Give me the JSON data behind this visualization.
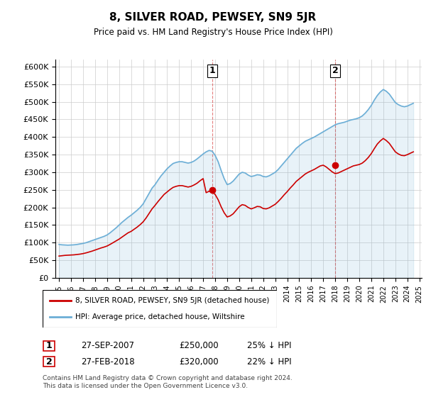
{
  "title": "8, SILVER ROAD, PEWSEY, SN9 5JR",
  "subtitle": "Price paid vs. HM Land Registry's House Price Index (HPI)",
  "ylabel": "",
  "ylim": [
    0,
    620000
  ],
  "yticks": [
    0,
    50000,
    100000,
    150000,
    200000,
    250000,
    300000,
    350000,
    400000,
    450000,
    500000,
    550000,
    600000
  ],
  "hpi_color": "#6baed6",
  "price_color": "#cc0000",
  "sale1": {
    "date": "2007-09-27",
    "price": 250000,
    "label": "1"
  },
  "sale2": {
    "date": "2018-02-27",
    "price": 320000,
    "label": "2"
  },
  "legend_line1": "8, SILVER ROAD, PEWSEY, SN9 5JR (detached house)",
  "legend_line2": "HPI: Average price, detached house, Wiltshire",
  "table_row1": [
    "1",
    "27-SEP-2007",
    "£250,000",
    "25% ↓ HPI"
  ],
  "table_row2": [
    "2",
    "27-FEB-2018",
    "£320,000",
    "22% ↓ HPI"
  ],
  "footer": "Contains HM Land Registry data © Crown copyright and database right 2024.\nThis data is licensed under the Open Government Licence v3.0.",
  "hpi_data": {
    "dates": [
      1995.0,
      1995.25,
      1995.5,
      1995.75,
      1996.0,
      1996.25,
      1996.5,
      1996.75,
      1997.0,
      1997.25,
      1997.5,
      1997.75,
      1998.0,
      1998.25,
      1998.5,
      1998.75,
      1999.0,
      1999.25,
      1999.5,
      1999.75,
      2000.0,
      2000.25,
      2000.5,
      2000.75,
      2001.0,
      2001.25,
      2001.5,
      2001.75,
      2002.0,
      2002.25,
      2002.5,
      2002.75,
      2003.0,
      2003.25,
      2003.5,
      2003.75,
      2004.0,
      2004.25,
      2004.5,
      2004.75,
      2005.0,
      2005.25,
      2005.5,
      2005.75,
      2006.0,
      2006.25,
      2006.5,
      2006.75,
      2007.0,
      2007.25,
      2007.5,
      2007.75,
      2008.0,
      2008.25,
      2008.5,
      2008.75,
      2009.0,
      2009.25,
      2009.5,
      2009.75,
      2010.0,
      2010.25,
      2010.5,
      2010.75,
      2011.0,
      2011.25,
      2011.5,
      2011.75,
      2012.0,
      2012.25,
      2012.5,
      2012.75,
      2013.0,
      2013.25,
      2013.5,
      2013.75,
      2014.0,
      2014.25,
      2014.5,
      2014.75,
      2015.0,
      2015.25,
      2015.5,
      2015.75,
      2016.0,
      2016.25,
      2016.5,
      2016.75,
      2017.0,
      2017.25,
      2017.5,
      2017.75,
      2018.0,
      2018.25,
      2018.5,
      2018.75,
      2019.0,
      2019.25,
      2019.5,
      2019.75,
      2020.0,
      2020.25,
      2020.5,
      2020.75,
      2021.0,
      2021.25,
      2021.5,
      2021.75,
      2022.0,
      2022.25,
      2022.5,
      2022.75,
      2023.0,
      2023.25,
      2023.5,
      2023.75,
      2024.0,
      2024.25,
      2024.5
    ],
    "values": [
      95000,
      94000,
      93500,
      93000,
      93500,
      94000,
      95000,
      96500,
      98000,
      100000,
      103000,
      106000,
      109000,
      112000,
      115000,
      118000,
      122000,
      128000,
      135000,
      142000,
      150000,
      158000,
      165000,
      172000,
      178000,
      185000,
      192000,
      200000,
      210000,
      225000,
      240000,
      255000,
      265000,
      278000,
      290000,
      300000,
      310000,
      318000,
      325000,
      328000,
      330000,
      330000,
      328000,
      326000,
      328000,
      332000,
      338000,
      345000,
      352000,
      358000,
      362000,
      360000,
      348000,
      330000,
      305000,
      282000,
      265000,
      268000,
      275000,
      285000,
      295000,
      300000,
      298000,
      292000,
      288000,
      290000,
      293000,
      292000,
      288000,
      287000,
      290000,
      295000,
      300000,
      308000,
      318000,
      328000,
      338000,
      348000,
      358000,
      368000,
      375000,
      382000,
      388000,
      392000,
      396000,
      400000,
      405000,
      410000,
      415000,
      420000,
      425000,
      430000,
      435000,
      438000,
      440000,
      442000,
      445000,
      448000,
      450000,
      452000,
      455000,
      460000,
      468000,
      478000,
      490000,
      505000,
      518000,
      528000,
      535000,
      530000,
      522000,
      510000,
      498000,
      492000,
      488000,
      486000,
      488000,
      492000,
      496000
    ]
  },
  "price_data": {
    "dates": [
      1995.0,
      1995.25,
      1995.5,
      1995.75,
      1996.0,
      1996.25,
      1996.5,
      1996.75,
      1997.0,
      1997.25,
      1997.5,
      1997.75,
      1998.0,
      1998.25,
      1998.5,
      1998.75,
      1999.0,
      1999.25,
      1999.5,
      1999.75,
      2000.0,
      2000.25,
      2000.5,
      2000.75,
      2001.0,
      2001.25,
      2001.5,
      2001.75,
      2002.0,
      2002.25,
      2002.5,
      2002.75,
      2003.0,
      2003.25,
      2003.5,
      2003.75,
      2004.0,
      2004.25,
      2004.5,
      2004.75,
      2005.0,
      2005.25,
      2005.5,
      2005.75,
      2006.0,
      2006.25,
      2006.5,
      2006.75,
      2007.0,
      2007.25,
      2007.5,
      2007.75,
      2008.0,
      2008.25,
      2008.5,
      2008.75,
      2009.0,
      2009.25,
      2009.5,
      2009.75,
      2010.0,
      2010.25,
      2010.5,
      2010.75,
      2011.0,
      2011.25,
      2011.5,
      2011.75,
      2012.0,
      2012.25,
      2012.5,
      2012.75,
      2013.0,
      2013.25,
      2013.5,
      2013.75,
      2014.0,
      2014.25,
      2014.5,
      2014.75,
      2015.0,
      2015.25,
      2015.5,
      2015.75,
      2016.0,
      2016.25,
      2016.5,
      2016.75,
      2017.0,
      2017.25,
      2017.5,
      2017.75,
      2018.0,
      2018.25,
      2018.5,
      2018.75,
      2019.0,
      2019.25,
      2019.5,
      2019.75,
      2020.0,
      2020.25,
      2020.5,
      2020.75,
      2021.0,
      2021.25,
      2021.5,
      2021.75,
      2022.0,
      2022.25,
      2022.5,
      2022.75,
      2023.0,
      2023.25,
      2023.5,
      2023.75,
      2024.0,
      2024.25,
      2024.5
    ],
    "values": [
      62000,
      63000,
      64000,
      64500,
      65000,
      65500,
      66500,
      67500,
      69000,
      71000,
      73500,
      76000,
      79000,
      82000,
      85000,
      87500,
      90500,
      95000,
      100000,
      105000,
      110000,
      116000,
      122000,
      128000,
      132000,
      138000,
      144000,
      151000,
      159000,
      170000,
      183000,
      196000,
      206000,
      217000,
      227000,
      237000,
      244000,
      251000,
      257000,
      260000,
      262000,
      262000,
      260000,
      258000,
      260000,
      264000,
      269000,
      276000,
      282000,
      242000,
      246000,
      244000,
      237000,
      222000,
      202000,
      185000,
      173000,
      176000,
      182000,
      192000,
      202000,
      208000,
      206000,
      200000,
      196000,
      199000,
      203000,
      202000,
      197000,
      196000,
      199000,
      204000,
      209000,
      217000,
      226000,
      236000,
      245000,
      255000,
      264000,
      274000,
      281000,
      288000,
      295000,
      300000,
      304000,
      308000,
      313000,
      318000,
      320000,
      315000,
      308000,
      301000,
      296000,
      298000,
      302000,
      306000,
      310000,
      314000,
      318000,
      320000,
      322000,
      326000,
      333000,
      342000,
      353000,
      367000,
      380000,
      389000,
      396000,
      390000,
      382000,
      370000,
      358000,
      352000,
      348000,
      347000,
      350000,
      354000,
      358000
    ]
  }
}
